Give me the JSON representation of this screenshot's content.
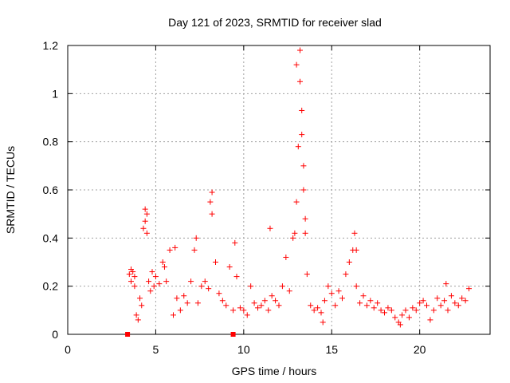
{
  "chart_data": {
    "type": "scatter",
    "title": "Day 121 of 2023, SRMTID for receiver slad",
    "xlabel": "GPS time / hours",
    "ylabel": "SRMTID / TECUs",
    "xlim": [
      0,
      24
    ],
    "ylim": [
      0,
      1.2
    ],
    "xticks": [
      0,
      5,
      10,
      15,
      20
    ],
    "yticks": [
      0,
      0.2,
      0.4,
      0.6,
      0.8,
      1,
      1.2
    ],
    "grid": true,
    "marker": "plus",
    "color": "#ff0000",
    "zero_markers": [
      3.4,
      9.4
    ],
    "series": [
      {
        "name": "SRMTID",
        "x": [
          3.5,
          3.6,
          3.7,
          3.8,
          3.9,
          4.0,
          4.1,
          4.2,
          4.3,
          4.4,
          4.5,
          4.6,
          4.7,
          4.8,
          4.9,
          5.0,
          5.2,
          5.4,
          5.6,
          5.8,
          6.0,
          6.2,
          6.4,
          6.6,
          6.8,
          7.0,
          7.2,
          7.4,
          7.6,
          7.8,
          8.0,
          8.2,
          8.4,
          8.6,
          8.8,
          9.0,
          9.2,
          9.4,
          9.6,
          9.8,
          10.0,
          10.2,
          10.4,
          10.6,
          10.8,
          11.0,
          11.2,
          11.4,
          11.6,
          11.8,
          12.0,
          12.2,
          12.4,
          12.6,
          12.8,
          13.0,
          13.1,
          13.2,
          13.3,
          13.4,
          13.5,
          13.6,
          13.8,
          14.0,
          14.2,
          14.4,
          14.6,
          14.8,
          15.0,
          15.2,
          15.4,
          15.6,
          15.8,
          16.0,
          16.2,
          16.4,
          16.6,
          16.8,
          17.0,
          17.2,
          17.4,
          17.6,
          17.8,
          18.0,
          18.2,
          18.4,
          18.6,
          18.8,
          19.0,
          19.2,
          19.4,
          19.6,
          19.8,
          20.0,
          20.2,
          20.4,
          20.6,
          20.8,
          21.0,
          21.2,
          21.4,
          21.6,
          21.8,
          22.0,
          22.2,
          22.4,
          22.6,
          22.8,
          3.6,
          3.8,
          4.4,
          4.5,
          5.5,
          6.1,
          7.3,
          8.1,
          8.2,
          9.5,
          11.5,
          12.9,
          13.0,
          13.2,
          13.3,
          13.4,
          13.5,
          16.3,
          16.4,
          14.5,
          18.9,
          21.5
        ],
        "y": [
          0.25,
          0.22,
          0.26,
          0.24,
          0.08,
          0.06,
          0.15,
          0.12,
          0.44,
          0.47,
          0.5,
          0.22,
          0.18,
          0.26,
          0.2,
          0.24,
          0.21,
          0.3,
          0.22,
          0.35,
          0.08,
          0.15,
          0.1,
          0.16,
          0.13,
          0.22,
          0.35,
          0.13,
          0.2,
          0.22,
          0.19,
          0.5,
          0.3,
          0.17,
          0.14,
          0.12,
          0.28,
          0.1,
          0.24,
          0.11,
          0.1,
          0.08,
          0.2,
          0.13,
          0.11,
          0.12,
          0.14,
          0.1,
          0.16,
          0.14,
          0.12,
          0.2,
          0.32,
          0.18,
          0.4,
          0.55,
          0.78,
          1.18,
          0.93,
          0.6,
          0.42,
          0.25,
          0.12,
          0.1,
          0.11,
          0.09,
          0.14,
          0.2,
          0.17,
          0.12,
          0.18,
          0.15,
          0.25,
          0.3,
          0.35,
          0.2,
          0.13,
          0.16,
          0.12,
          0.14,
          0.11,
          0.13,
          0.1,
          0.09,
          0.11,
          0.1,
          0.07,
          0.05,
          0.08,
          0.1,
          0.07,
          0.11,
          0.1,
          0.13,
          0.14,
          0.12,
          0.06,
          0.1,
          0.15,
          0.12,
          0.14,
          0.1,
          0.16,
          0.13,
          0.12,
          0.15,
          0.14,
          0.19,
          0.27,
          0.2,
          0.52,
          0.42,
          0.28,
          0.36,
          0.4,
          0.55,
          0.59,
          0.38,
          0.44,
          0.42,
          1.12,
          1.05,
          0.83,
          0.7,
          0.48,
          0.42,
          0.35,
          0.05,
          0.04,
          0.21
        ]
      }
    ]
  }
}
